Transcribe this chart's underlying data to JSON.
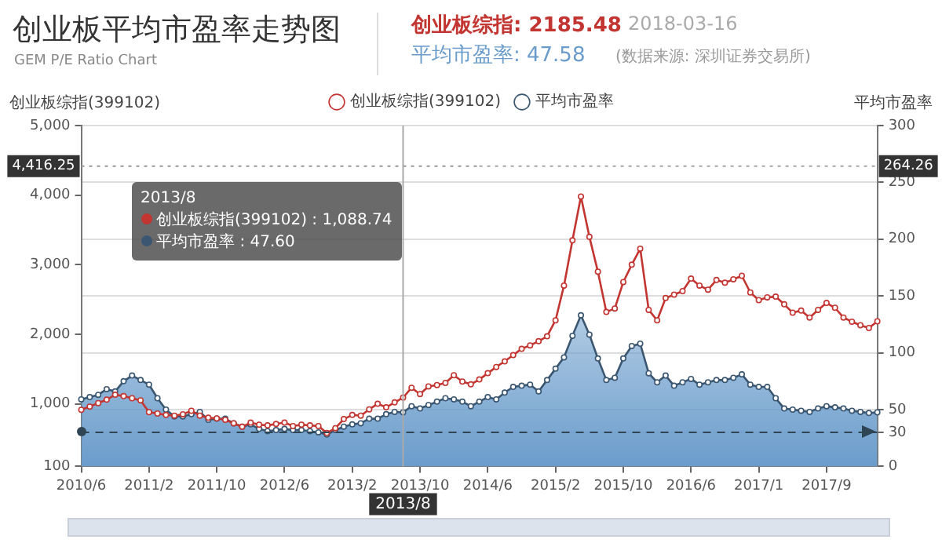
{
  "chart_data": {
    "type": "line",
    "title": "创业板平均市盈率走势图",
    "subtitle": "GEM P/E Ratio Chart",
    "ylabel": "创业板综指(399102)",
    "y2label": "平均市盈率",
    "annotations": [
      "创业板综指: 2185.48",
      "2018-03-16",
      "平均市盈率: 47.58",
      "(数据来源: 深圳证券交易所)",
      "2013/8",
      "创业板综指(399102) : 1,088.74",
      "平均市盈率 : 47.60"
    ],
    "categories": [
      "2010/6",
      null,
      null,
      null,
      null,
      null,
      null,
      null,
      "2011/2",
      null,
      null,
      null,
      null,
      null,
      null,
      null,
      "2011/10",
      null,
      null,
      null,
      null,
      null,
      null,
      null,
      "2012/6",
      null,
      null,
      null,
      null,
      null,
      null,
      null,
      "2013/2",
      null,
      null,
      null,
      null,
      null,
      "2013/8",
      null,
      "2013/10",
      null,
      null,
      null,
      null,
      null,
      null,
      null,
      "2014/6",
      null,
      null,
      null,
      null,
      null,
      null,
      null,
      "2015/2",
      null,
      null,
      null,
      null,
      null,
      null,
      null,
      "2015/10",
      null,
      null,
      null,
      null,
      null,
      null,
      null,
      "2016/6",
      null,
      null,
      null,
      null,
      null,
      null,
      null,
      "2017/1",
      null,
      null,
      null,
      null,
      null,
      null,
      null,
      "2017/9",
      null,
      null,
      null,
      null,
      null,
      null
    ],
    "series": [
      {
        "name": "创业板综指(399102)",
        "type": "line",
        "color": "#c23531",
        "axis": "y",
        "values": [
          914,
          960,
          1010,
          1060,
          1130,
          1110,
          1080,
          1050,
          880,
          860,
          840,
          830,
          850,
          900,
          830,
          800,
          790,
          770,
          720,
          670,
          730,
          700,
          690,
          710,
          730,
          680,
          700,
          690,
          680,
          580,
          650,
          780,
          840,
          830,
          920,
          1000,
          950,
          1020,
          1088.74,
          1230,
          1140,
          1250,
          1270,
          1300,
          1410,
          1320,
          1280,
          1350,
          1440,
          1530,
          1610,
          1700,
          1790,
          1840,
          1900,
          1970,
          2200,
          2700,
          3350,
          3980,
          3400,
          2900,
          2320,
          2370,
          2750,
          3000,
          3230,
          2350,
          2200,
          2520,
          2570,
          2620,
          2800,
          2700,
          2640,
          2780,
          2740,
          2790,
          2840,
          2600,
          2490,
          2530,
          2540,
          2430,
          2310,
          2340,
          2240,
          2350,
          2450,
          2380,
          2240,
          2180,
          2130,
          2090,
          2185.48
        ]
      },
      {
        "name": "平均市盈率",
        "type": "area",
        "color": "#6a9ccb",
        "axis": "y2",
        "values": [
          59,
          61,
          63,
          68,
          66,
          75,
          80,
          76,
          72,
          60,
          50,
          44,
          44,
          46,
          48,
          41,
          42,
          42,
          38,
          35,
          37,
          33,
          31,
          32,
          33,
          32,
          32,
          31,
          30,
          28,
          32,
          35,
          37,
          38,
          42,
          42,
          46,
          48,
          47.6,
          53,
          51,
          54,
          57,
          60,
          59,
          57,
          53,
          57,
          61,
          59,
          65,
          70,
          71,
          72,
          66,
          76,
          86,
          96,
          115,
          133,
          116,
          95,
          76,
          78,
          95,
          106,
          108,
          82,
          74,
          80,
          71,
          74,
          77,
          72,
          74,
          76,
          76,
          78,
          81,
          72,
          70,
          70,
          60,
          51,
          50,
          49,
          48,
          51,
          53,
          52,
          51,
          49,
          48,
          47,
          47.58
        ]
      }
    ],
    "ylim": [
      100,
      5000
    ],
    "yticks": [
      100,
      {
        "value": 1000,
        "label": "1,000"
      },
      {
        "value": 2000,
        "label": "2,000"
      },
      {
        "value": 3000,
        "label": "3,000"
      },
      {
        "value": 4000,
        "label": "4,000"
      },
      {
        "value": 5000,
        "label": "5,000"
      }
    ],
    "y2lim": [
      0,
      300
    ],
    "y2ticks": [
      0,
      30,
      50,
      100,
      150,
      200,
      250,
      300
    ],
    "ref_lines": [
      {
        "axis": "y",
        "value": 4416.25,
        "label": "4,416.25",
        "color": "#999999",
        "line_style": "dotted"
      },
      {
        "axis": "y2",
        "value": 264.26,
        "label": "264.26",
        "color": "#a6a6a6",
        "line_style": "dotted"
      },
      {
        "axis": "y2",
        "value": 30,
        "color": "#2f4554",
        "line_style": "dashed"
      },
      {
        "axis": "x",
        "value": "2013/8",
        "color": "#aaaaaa",
        "line_style": "solid"
      }
    ],
    "grid": "y2",
    "legend": "top",
    "marker": "circle",
    "line_style": "solid"
  }
}
